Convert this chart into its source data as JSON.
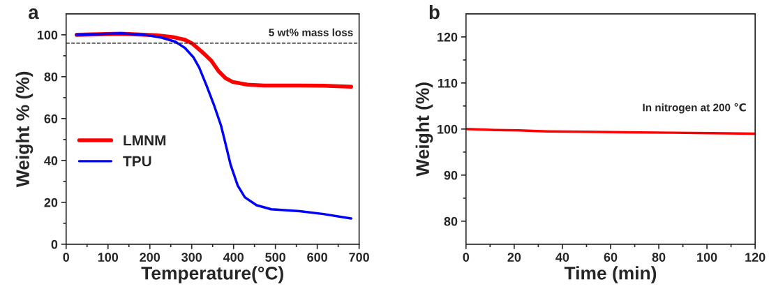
{
  "chart_data": [
    {
      "type": "line",
      "title": "a",
      "xlabel": "Temperature(°C)",
      "ylabel": "Weight % (%)",
      "xlim": [
        0,
        700
      ],
      "xticks": [
        0,
        100,
        200,
        300,
        400,
        500,
        600,
        700
      ],
      "ylim": [
        0,
        110
      ],
      "yticks": [
        0,
        20,
        40,
        60,
        80,
        100
      ],
      "legend": "center left",
      "grid": false,
      "ref_lines": [
        {
          "axis": "y",
          "value": 96,
          "label": "5 wt% mass loss",
          "color": "#000000",
          "line_style": "dashed"
        }
      ],
      "series": [
        {
          "name": "LMNM",
          "color": "#ff0000",
          "x": [
            25,
            130,
            216,
            256,
            284,
            301,
            330,
            347,
            364,
            381,
            398,
            433,
            473,
            558,
            615,
            681
          ],
          "values": [
            100,
            100.5,
            99.8,
            98.9,
            97.6,
            95.9,
            90.9,
            87.6,
            82.7,
            79.3,
            77.5,
            76.2,
            75.8,
            75.8,
            75.7,
            75.2
          ]
        },
        {
          "name": "TPU",
          "color": "#0000ff",
          "x": [
            25,
            130,
            187,
            227,
            261,
            284,
            304,
            318,
            336,
            353,
            370,
            381,
            393,
            410,
            427,
            455,
            490,
            558,
            615,
            681
          ],
          "values": [
            100,
            100.7,
            100,
            98.7,
            96.7,
            93.7,
            89.3,
            84.3,
            75.5,
            66.6,
            56.7,
            47.8,
            37.9,
            28,
            22.4,
            18.6,
            16.7,
            15.8,
            14.4,
            12.3
          ]
        }
      ]
    },
    {
      "type": "line",
      "title": "b",
      "xlabel": "Time (min)",
      "ylabel": "Weight (%)",
      "xlim": [
        0,
        120
      ],
      "xticks": [
        0,
        20,
        40,
        60,
        80,
        100,
        120
      ],
      "ylim": [
        75,
        125
      ],
      "yticks": [
        80,
        90,
        100,
        110,
        120
      ],
      "grid": false,
      "annotations": [
        "In nitrogen at 200 ℃"
      ],
      "series": [
        {
          "color": "#ff0000",
          "x": [
            0,
            12,
            22,
            34,
            50,
            66,
            86,
            102,
            120
          ],
          "values": [
            100,
            99.8,
            99.7,
            99.5,
            99.4,
            99.3,
            99.2,
            99.1,
            99.0
          ]
        }
      ]
    }
  ]
}
